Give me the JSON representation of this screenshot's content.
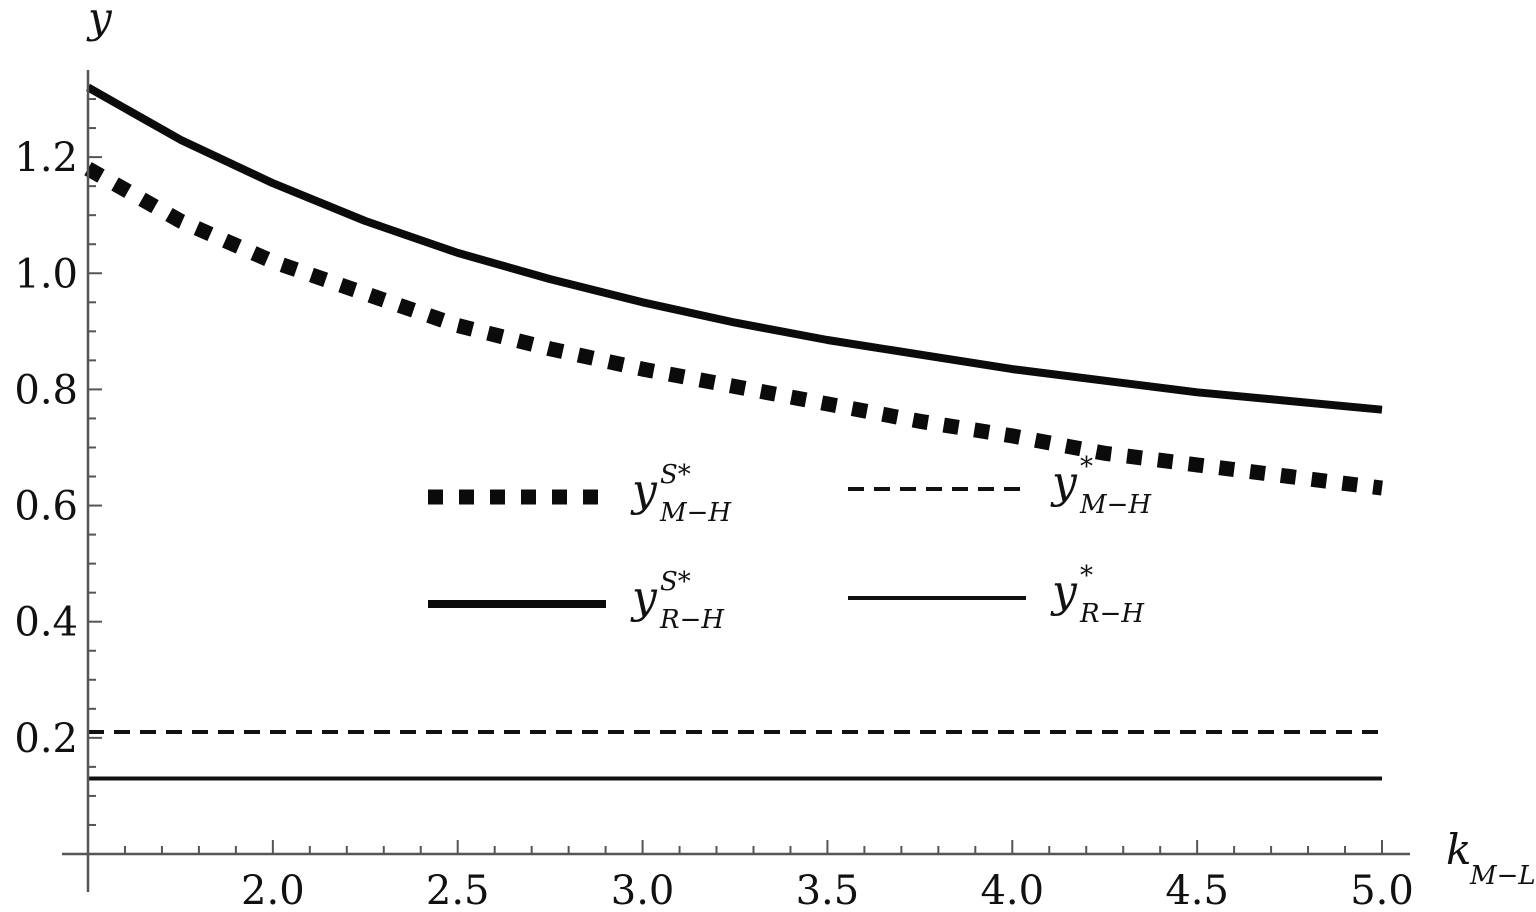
{
  "chart_data": {
    "type": "line",
    "xlabel": "k",
    "xlabel_sub": "M−L",
    "ylabel": "y",
    "xlim": [
      1.5,
      5.0
    ],
    "ylim": [
      0.0,
      1.35
    ],
    "x_ticks": [
      "2.0",
      "2.5",
      "3.0",
      "3.5",
      "4.0",
      "4.5",
      "5.0"
    ],
    "y_ticks": [
      "0.2",
      "0.4",
      "0.6",
      "0.8",
      "1.0",
      "1.2"
    ],
    "x": [
      1.5,
      1.75,
      2.0,
      2.25,
      2.5,
      2.75,
      3.0,
      3.25,
      3.5,
      3.75,
      4.0,
      4.25,
      4.5,
      4.75,
      5.0
    ],
    "series": [
      {
        "name": "y S* M−H",
        "legend_base": "y",
        "legend_sup": "S*",
        "legend_sub": "M−H",
        "style": "thick-dotted",
        "values": [
          1.18,
          1.09,
          1.02,
          0.965,
          0.91,
          0.87,
          0.835,
          0.805,
          0.775,
          0.745,
          0.72,
          0.69,
          0.67,
          0.65,
          0.63
        ]
      },
      {
        "name": "y * M−H",
        "legend_base": "y",
        "legend_sup": "*",
        "legend_sub": "M−H",
        "style": "dashed",
        "values": [
          0.21,
          0.21,
          0.21,
          0.21,
          0.21,
          0.21,
          0.21,
          0.21,
          0.21,
          0.21,
          0.21,
          0.21,
          0.21,
          0.21,
          0.21
        ]
      },
      {
        "name": "y S* R−H",
        "legend_base": "y",
        "legend_sup": "S*",
        "legend_sub": "R−H",
        "style": "thick-solid",
        "values": [
          1.32,
          1.23,
          1.155,
          1.09,
          1.035,
          0.99,
          0.95,
          0.915,
          0.885,
          0.86,
          0.835,
          0.815,
          0.795,
          0.78,
          0.765
        ]
      },
      {
        "name": "y * R−H",
        "legend_base": "y",
        "legend_sup": "*",
        "legend_sub": "R−H",
        "style": "solid",
        "values": [
          0.13,
          0.13,
          0.13,
          0.13,
          0.13,
          0.13,
          0.13,
          0.13,
          0.13,
          0.13,
          0.13,
          0.13,
          0.13,
          0.13,
          0.13
        ]
      }
    ],
    "legend_position": "center",
    "grid": false
  }
}
